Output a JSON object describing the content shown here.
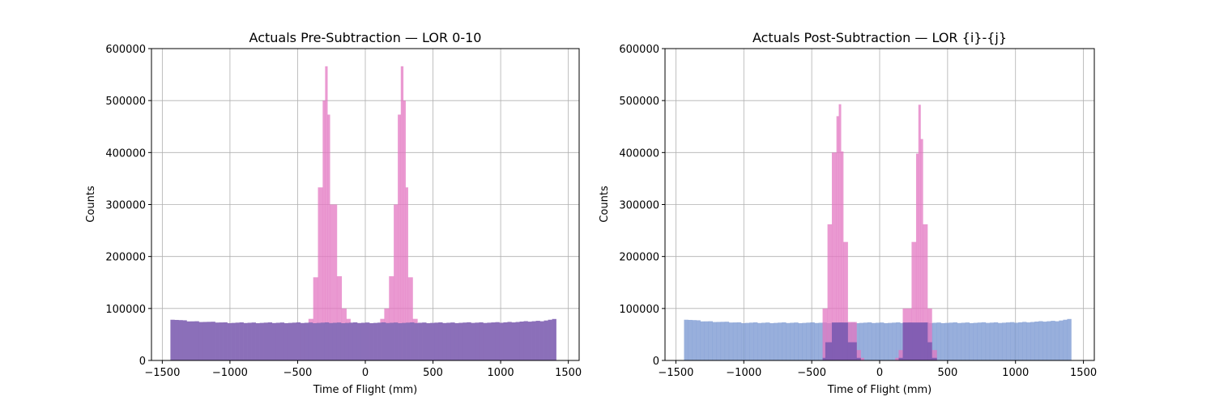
{
  "chart_data": [
    {
      "type": "histogram",
      "title": "Actuals Pre-Subtraction — LOR 0-10",
      "xlabel": "Time of Flight (mm)",
      "ylabel": "Counts",
      "xlim": [
        -1580,
        1580
      ],
      "ylim": [
        0,
        600000
      ],
      "x_ticks": [
        -1500,
        -1000,
        -500,
        0,
        500,
        1000,
        1500
      ],
      "x_tick_labels": [
        "−1500",
        "−1000",
        "−500",
        "0",
        "500",
        "1000",
        "1500"
      ],
      "y_ticks": [
        0,
        100000,
        200000,
        300000,
        400000,
        500000,
        600000
      ],
      "y_tick_labels": [
        "0",
        "100000",
        "200000",
        "300000",
        "400000",
        "500000",
        "600000"
      ],
      "grid": true,
      "legend": "none",
      "series": [
        {
          "color": "#e377c2",
          "opacity": 0.75,
          "bins": [
            {
              "x0": -420,
              "x1": -385,
              "y": 80000
            },
            {
              "x0": -385,
              "x1": -350,
              "y": 160000
            },
            {
              "x0": -350,
              "x1": -315,
              "y": 333000
            },
            {
              "x0": -315,
              "x1": -297,
              "y": 500000
            },
            {
              "x0": -297,
              "x1": -280,
              "y": 566000
            },
            {
              "x0": -280,
              "x1": -262,
              "y": 473000
            },
            {
              "x0": -262,
              "x1": -210,
              "y": 300000
            },
            {
              "x0": -210,
              "x1": -175,
              "y": 162000
            },
            {
              "x0": -175,
              "x1": -140,
              "y": 100000
            },
            {
              "x0": -140,
              "x1": -110,
              "y": 80000
            },
            {
              "x0": 110,
              "x1": 140,
              "y": 80000
            },
            {
              "x0": 140,
              "x1": 175,
              "y": 100000
            },
            {
              "x0": 175,
              "x1": 210,
              "y": 162000
            },
            {
              "x0": 210,
              "x1": 240,
              "y": 300000
            },
            {
              "x0": 240,
              "x1": 262,
              "y": 473000
            },
            {
              "x0": 262,
              "x1": 280,
              "y": 566000
            },
            {
              "x0": 280,
              "x1": 297,
              "y": 500000
            },
            {
              "x0": 297,
              "x1": 315,
              "y": 333000
            },
            {
              "x0": 315,
              "x1": 350,
              "y": 160000
            },
            {
              "x0": 350,
              "x1": 385,
              "y": 80000
            }
          ]
        },
        {
          "color": "#8b6fb9",
          "opacity": 1,
          "range": [
            -1440,
            1410
          ],
          "bin_count": 95,
          "profile": [
            [
              -1440,
              79500
            ],
            [
              -1300,
              75500
            ],
            [
              -1000,
              72500
            ],
            [
              -600,
              72500
            ],
            [
              0,
              72500
            ],
            [
              600,
              72500
            ],
            [
              1000,
              73000
            ],
            [
              1300,
              76000
            ],
            [
              1410,
              79500
            ]
          ]
        }
      ]
    },
    {
      "type": "histogram",
      "title": "Actuals Post-Subtraction — LOR {i}-{j}",
      "xlabel": "Time of Flight (mm)",
      "ylabel": "Counts",
      "xlim": [
        -1580,
        1580
      ],
      "ylim": [
        0,
        600000
      ],
      "x_ticks": [
        -1500,
        -1000,
        -500,
        0,
        500,
        1000,
        1500
      ],
      "x_tick_labels": [
        "−1500",
        "−1000",
        "−500",
        "0",
        "500",
        "1000",
        "1500"
      ],
      "y_ticks": [
        0,
        100000,
        200000,
        300000,
        400000,
        500000,
        600000
      ],
      "y_tick_labels": [
        "0",
        "100000",
        "200000",
        "300000",
        "400000",
        "500000",
        "600000"
      ],
      "grid": true,
      "legend": "none",
      "series": [
        {
          "color": "#7b98d2",
          "opacity": 0.78,
          "range": [
            -1440,
            1410
          ],
          "bin_count": 95,
          "profile": [
            [
              -1440,
              79500
            ],
            [
              -1300,
              75500
            ],
            [
              -1000,
              72500
            ],
            [
              -600,
              72500
            ],
            [
              0,
              72500
            ],
            [
              600,
              72500
            ],
            [
              1000,
              73000
            ],
            [
              1300,
              76000
            ],
            [
              1410,
              79500
            ]
          ]
        },
        {
          "color": "#e377c2",
          "opacity": 0.75,
          "bins": [
            {
              "x0": -420,
              "x1": -384,
              "y": 100000
            },
            {
              "x0": -384,
              "x1": -352,
              "y": 262000
            },
            {
              "x0": -352,
              "x1": -318,
              "y": 400000
            },
            {
              "x0": -318,
              "x1": -301,
              "y": 470000
            },
            {
              "x0": -301,
              "x1": -285,
              "y": 493000
            },
            {
              "x0": -285,
              "x1": -268,
              "y": 402000
            },
            {
              "x0": -268,
              "x1": -235,
              "y": 228000
            },
            {
              "x0": -235,
              "x1": -170,
              "y": 74000
            },
            {
              "x0": -170,
              "x1": -140,
              "y": 20000
            },
            {
              "x0": -140,
              "x1": -115,
              "y": 5000
            },
            {
              "x0": 115,
              "x1": 140,
              "y": 5000
            },
            {
              "x0": 140,
              "x1": 170,
              "y": 20000
            },
            {
              "x0": 170,
              "x1": 235,
              "y": 100000
            },
            {
              "x0": 235,
              "x1": 268,
              "y": 228000
            },
            {
              "x0": 268,
              "x1": 285,
              "y": 398000
            },
            {
              "x0": 285,
              "x1": 301,
              "y": 492000
            },
            {
              "x0": 301,
              "x1": 318,
              "y": 426000
            },
            {
              "x0": 318,
              "x1": 352,
              "y": 262000
            },
            {
              "x0": 352,
              "x1": 384,
              "y": 100000
            },
            {
              "x0": 384,
              "x1": 420,
              "y": 20000
            }
          ]
        },
        {
          "color": "#7a5ab0",
          "opacity": 0.9,
          "bins": [
            {
              "x0": -420,
              "x1": -400,
              "y": 5000
            },
            {
              "x0": -400,
              "x1": -352,
              "y": 35000
            },
            {
              "x0": -352,
              "x1": -235,
              "y": 73000
            },
            {
              "x0": -235,
              "x1": -170,
              "y": 35000
            },
            {
              "x0": -170,
              "x1": -140,
              "y": 5000
            },
            {
              "x0": 140,
              "x1": 170,
              "y": 5000
            },
            {
              "x0": 170,
              "x1": 352,
              "y": 73000
            },
            {
              "x0": 352,
              "x1": 384,
              "y": 35000
            },
            {
              "x0": 384,
              "x1": 420,
              "y": 5000
            }
          ]
        }
      ]
    }
  ]
}
